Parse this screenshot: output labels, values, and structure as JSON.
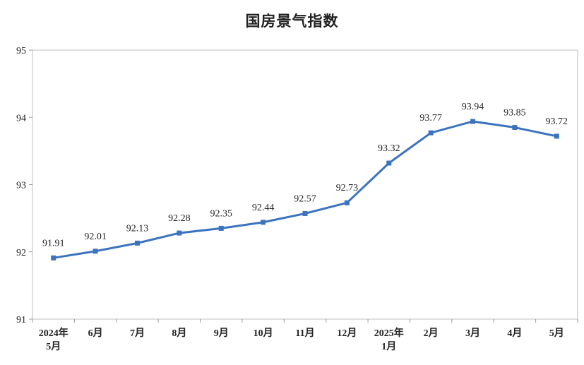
{
  "chart_data": {
    "type": "line",
    "title": "国房景气指数",
    "categories": [
      [
        "2024年",
        "5月"
      ],
      [
        "6月"
      ],
      [
        "7月"
      ],
      [
        "8月"
      ],
      [
        "9月"
      ],
      [
        "10月"
      ],
      [
        "11月"
      ],
      [
        "12月"
      ],
      [
        "2025年",
        "1月"
      ],
      [
        "2月"
      ],
      [
        "3月"
      ],
      [
        "4月"
      ],
      [
        "5月"
      ]
    ],
    "series": [
      {
        "values": [
          91.91,
          92.01,
          92.13,
          92.28,
          92.35,
          92.44,
          92.57,
          92.73,
          93.32,
          93.77,
          93.94,
          93.85,
          93.72
        ],
        "color": "#3B73BE"
      }
    ],
    "data_labels": [
      "91.91",
      "92.01",
      "92.13",
      "92.28",
      "92.35",
      "92.44",
      "92.57",
      "92.73",
      "93.32",
      "93.77",
      "93.94",
      "93.85",
      "93.72"
    ],
    "ylim": [
      91,
      95
    ],
    "yticks": [
      91,
      92,
      93,
      94,
      95
    ],
    "ytick_labels": [
      "91",
      "92",
      "93",
      "94",
      "95"
    ],
    "grid": false,
    "legend": "none",
    "marker": "square"
  }
}
